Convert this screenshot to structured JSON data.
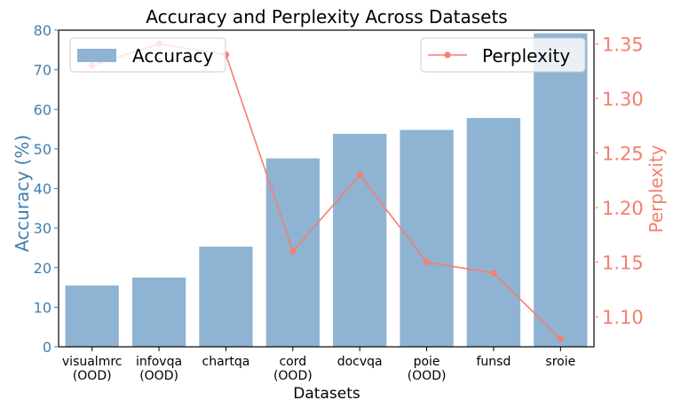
{
  "chart_data": {
    "type": "bar",
    "title": "Accuracy and Perplexity Across Datasets",
    "xlabel": "Datasets",
    "categories": [
      [
        "visualmrc",
        "(OOD)"
      ],
      [
        "infovqa",
        "(OOD)"
      ],
      [
        "chartqa"
      ],
      [
        "cord",
        "(OOD)"
      ],
      [
        "docvqa"
      ],
      [
        "poie",
        "(OOD)"
      ],
      [
        "funsd"
      ],
      [
        "sroie"
      ]
    ],
    "series": [
      {
        "name": "Accuracy",
        "kind": "bar",
        "axis": "left",
        "color": "#8fb3d3",
        "values": [
          15.5,
          17.5,
          25.3,
          47.6,
          53.8,
          54.8,
          57.8,
          79.2
        ]
      },
      {
        "name": "Perplexity",
        "kind": "line",
        "axis": "right",
        "color": "#f47f6e",
        "values": [
          1.33,
          1.35,
          1.34,
          1.16,
          1.23,
          1.15,
          1.14,
          1.08
        ]
      }
    ],
    "left_axis": {
      "label": "Accuracy (%)",
      "color": "#3f7fb1",
      "ylim": [
        0,
        80
      ],
      "ticks": [
        "0",
        "10",
        "20",
        "30",
        "40",
        "50",
        "60",
        "70",
        "80"
      ]
    },
    "right_axis": {
      "label": "Perplexity",
      "color": "#f47f6e",
      "ylim": [
        1.0725,
        1.3625
      ],
      "ticks": [
        "1.10",
        "1.15",
        "1.20",
        "1.25",
        "1.30",
        "1.35"
      ]
    },
    "legends": [
      {
        "placement": "top-left",
        "entries": [
          "Accuracy"
        ]
      },
      {
        "placement": "top-right",
        "entries": [
          "Perplexity"
        ]
      }
    ],
    "grid": false
  }
}
